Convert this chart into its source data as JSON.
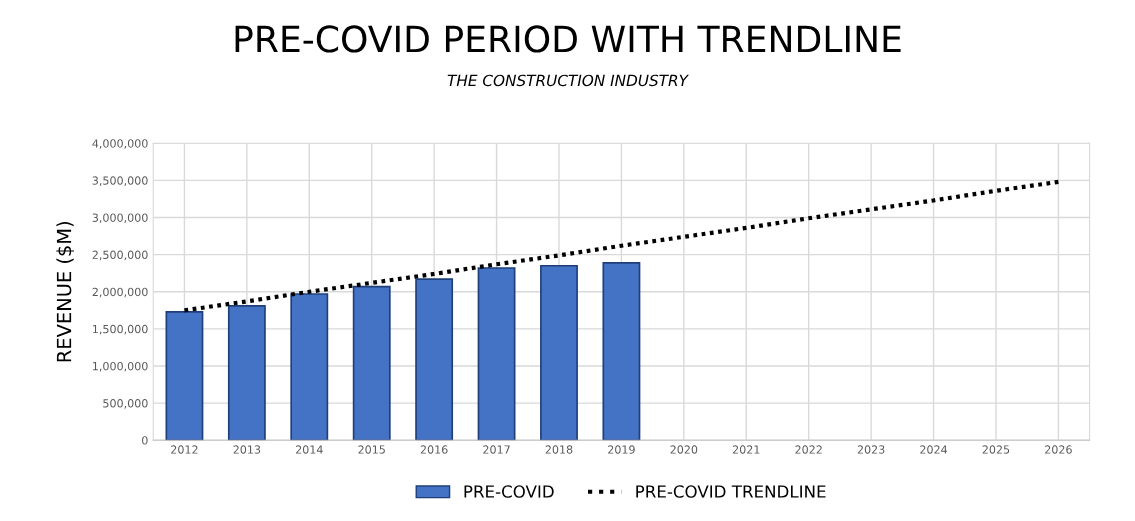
{
  "chart_data": {
    "type": "bar",
    "title": "PRE-COVID PERIOD WITH TRENDLINE",
    "subtitle": "THE CONSTRUCTION INDUSTRY",
    "ylabel": "REVENUE ($M)",
    "categories": [
      "2012",
      "2013",
      "2014",
      "2015",
      "2016",
      "2017",
      "2018",
      "2019",
      "2020",
      "2021",
      "2022",
      "2023",
      "2024",
      "2025",
      "2026"
    ],
    "series": [
      {
        "name": "PRE-COVID",
        "color": "#4472c4",
        "values": [
          1730000,
          1810000,
          1970000,
          2070000,
          2170000,
          2320000,
          2350000,
          2390000,
          null,
          null,
          null,
          null,
          null,
          null,
          null
        ]
      },
      {
        "name": "PRE-COVID TRENDLINE",
        "type": "line",
        "color": "#000000",
        "line_style": "dotted",
        "values": [
          1750000,
          1870000,
          2000000,
          2120000,
          2240000,
          2370000,
          2490000,
          2620000,
          2740000,
          2860000,
          2990000,
          3110000,
          3230000,
          3360000,
          3480000
        ]
      }
    ],
    "ylim": [
      0,
      4000000
    ],
    "yticks": [
      {
        "value": 0,
        "label": "0"
      },
      {
        "value": 500000,
        "label": "500,000"
      },
      {
        "value": 1000000,
        "label": "1,000,000"
      },
      {
        "value": 1500000,
        "label": "1,500,000"
      },
      {
        "value": 2000000,
        "label": "2,000,000"
      },
      {
        "value": 2500000,
        "label": "2,500,000"
      },
      {
        "value": 3000000,
        "label": "3,000,000"
      },
      {
        "value": 3500000,
        "label": "3,500,000"
      },
      {
        "value": 4000000,
        "label": "4,000,000"
      }
    ],
    "grid": true,
    "legend": "bottom"
  }
}
